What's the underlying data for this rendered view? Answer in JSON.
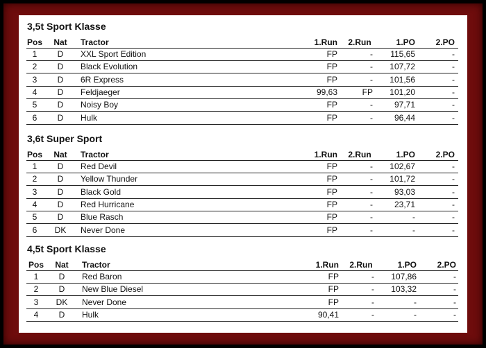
{
  "sections": [
    {
      "title": "3,5t Sport Klasse",
      "columns": [
        "Pos",
        "Nat",
        "Tractor",
        "1.Run",
        "2.Run",
        "1.PO",
        "2.PO"
      ],
      "rows": [
        [
          "1",
          "D",
          "XXL Sport Edition",
          "FP",
          "-",
          "115,65",
          "-"
        ],
        [
          "2",
          "D",
          "Black Evolution",
          "FP",
          "-",
          "107,72",
          "-"
        ],
        [
          "3",
          "D",
          "6R Express",
          "FP",
          "-",
          "101,56",
          "-"
        ],
        [
          "4",
          "D",
          "Feldjaeger",
          "99,63",
          "FP",
          "101,20",
          "-"
        ],
        [
          "5",
          "D",
          "Noisy Boy",
          "FP",
          "-",
          "97,71",
          "-"
        ],
        [
          "6",
          "D",
          "Hulk",
          "FP",
          "-",
          "96,44",
          "-"
        ]
      ]
    },
    {
      "title": "3,6t Super Sport",
      "columns": [
        "Pos",
        "Nat",
        "Tractor",
        "1.Run",
        "2.Run",
        "1.PO",
        "2.PO"
      ],
      "rows": [
        [
          "1",
          "D",
          "Red Devil",
          "FP",
          "-",
          "102,67",
          "-"
        ],
        [
          "2",
          "D",
          "Yellow Thunder",
          "FP",
          "-",
          "101,72",
          "-"
        ],
        [
          "3",
          "D",
          "Black Gold",
          "FP",
          "-",
          "93,03",
          "-"
        ],
        [
          "4",
          "D",
          "Red Hurricane",
          "FP",
          "-",
          "23,71",
          "-"
        ],
        [
          "5",
          "D",
          "Blue Rasch",
          "FP",
          "-",
          "-",
          "-"
        ],
        [
          "6",
          "DK",
          "Never Done",
          "FP",
          "-",
          "-",
          "-"
        ]
      ]
    },
    {
      "title": "4,5t Sport Klasse",
      "columns": [
        "Pos",
        "Nat",
        "Tractor",
        "1.Run",
        "2.Run",
        "1.PO",
        "2.PO"
      ],
      "rows": [
        [
          "1",
          "D",
          "Red Baron",
          "FP",
          "-",
          "107,86",
          "-"
        ],
        [
          "2",
          "D",
          "New Blue Diesel",
          "FP",
          "-",
          "103,32",
          "-"
        ],
        [
          "3",
          "DK",
          "Never Done",
          "FP",
          "-",
          "-",
          "-"
        ],
        [
          "4",
          "D",
          "Hulk",
          "90,41",
          "-",
          "-",
          "-"
        ]
      ]
    }
  ]
}
